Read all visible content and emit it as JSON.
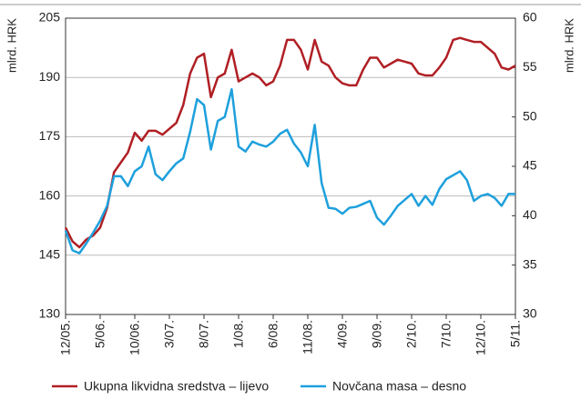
{
  "chart_data": {
    "type": "line",
    "y_label": "mlrd. HRK",
    "y2_label": "mlrd. HRK",
    "categories": [
      "12/05.",
      null,
      null,
      null,
      null,
      "5/06.",
      null,
      null,
      null,
      null,
      "10/06.",
      null,
      null,
      null,
      null,
      "3/07.",
      null,
      null,
      null,
      null,
      "8/07.",
      null,
      null,
      null,
      null,
      "1/08.",
      null,
      null,
      null,
      null,
      "6/08.",
      null,
      null,
      null,
      null,
      "11/08.",
      null,
      null,
      null,
      null,
      "4/09.",
      null,
      null,
      null,
      null,
      "9/09.",
      null,
      null,
      null,
      null,
      "2/10.",
      null,
      null,
      null,
      null,
      "7/10.",
      null,
      null,
      null,
      null,
      "12/10.",
      null,
      null,
      null,
      null,
      "5/11."
    ],
    "series": [
      {
        "name": "Ukupna likvidna sredstva – lijevo",
        "color": "#b01f24",
        "axis": "y",
        "values": [
          152,
          148.5,
          147,
          149,
          150,
          152,
          157,
          166,
          168.5,
          171,
          176,
          174,
          176.5,
          176.5,
          175.5,
          177,
          178.5,
          183,
          191,
          195,
          196,
          185,
          190,
          191,
          197,
          189,
          190,
          191,
          190,
          188,
          189,
          193,
          199.5,
          199.5,
          197,
          192,
          199.5,
          194,
          193,
          190,
          188.5,
          188,
          188,
          192,
          195,
          195,
          192.5,
          193.5,
          194.5,
          194,
          193.5,
          191,
          190.5,
          190.5,
          192.5,
          195,
          199.5,
          200,
          199.5,
          199,
          199,
          197.5,
          196,
          192.5,
          192,
          193
        ]
      },
      {
        "name": "Novčana masa – desno",
        "color": "#1ea0dc",
        "axis": "y2",
        "values": [
          38.5,
          36.5,
          36.2,
          37.2,
          38.3,
          39.5,
          41,
          44,
          44,
          43,
          44.5,
          45,
          47,
          44.2,
          43.6,
          44.5,
          45.3,
          45.8,
          48.5,
          51.8,
          51.2,
          46.7,
          49.6,
          50,
          52.8,
          47,
          46.5,
          47.5,
          47.2,
          47,
          47.5,
          48.3,
          48.7,
          47.3,
          46.4,
          45,
          49.2,
          43.3,
          40.8,
          40.7,
          40.2,
          40.8,
          40.9,
          41.2,
          41.5,
          39.8,
          39.1,
          40,
          41,
          41.6,
          42.2,
          41,
          42,
          41.1,
          42.7,
          43.7,
          44.1,
          44.5,
          43.6,
          41.5,
          42,
          42.2,
          41.8,
          41,
          42.2,
          42.2
        ]
      }
    ],
    "ylim": [
      130,
      205
    ],
    "yticks": [
      130,
      145,
      160,
      175,
      190,
      205
    ],
    "y2lim": [
      30,
      60
    ],
    "y2ticks": [
      30,
      35,
      40,
      45,
      50,
      55,
      60
    ],
    "grid": true
  }
}
